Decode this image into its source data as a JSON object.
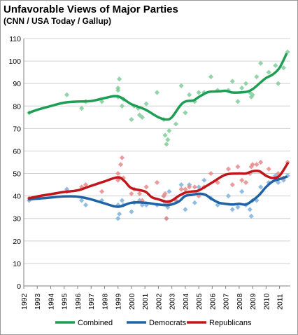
{
  "title": "Unfavorable Views of Major Parties",
  "subtitle": "(CNN / USA Today / Gallup)",
  "chart_data": {
    "type": "scatter",
    "title": "Unfavorable Views of Major Parties",
    "subtitle": "(CNN / USA Today / Gallup)",
    "xlim": [
      1992,
      2011.8
    ],
    "ylim": [
      0,
      110
    ],
    "yticks": [
      0,
      10,
      20,
      30,
      40,
      50,
      60,
      70,
      80,
      90,
      100,
      110
    ],
    "xticks": [
      1992,
      1993,
      1994,
      1995,
      1996,
      1997,
      1998,
      1999,
      2000,
      2001,
      2002,
      2003,
      2004,
      2005,
      2006,
      2007,
      2008,
      2009,
      2010,
      2011
    ],
    "xtick_labels": [
      "1992",
      "1993",
      "1994",
      "1995",
      "1996",
      "1997",
      "1998",
      "1999",
      "2000",
      "2001",
      "2002",
      "2003",
      "2004",
      "2005",
      "2006",
      "2007",
      "2008",
      "2009",
      "2010",
      "2011"
    ],
    "grid": "horizontal",
    "legend_position": "bottom",
    "series": [
      {
        "name": "Combined",
        "color": "#1e9e55",
        "point_color": "#80cc9a",
        "trend": [
          [
            1992.4,
            77
          ],
          [
            1993,
            78.3
          ],
          [
            1994,
            80
          ],
          [
            1995,
            81.5
          ],
          [
            1996,
            82
          ],
          [
            1997,
            82.2
          ],
          [
            1998,
            83.5
          ],
          [
            1999,
            84.3
          ],
          [
            2000,
            80.8
          ],
          [
            2001,
            78.5
          ],
          [
            2002,
            75
          ],
          [
            2002.6,
            74
          ],
          [
            2003,
            75
          ],
          [
            2003.6,
            80
          ],
          [
            2004,
            82
          ],
          [
            2004.6,
            82.5
          ],
          [
            2005,
            84
          ],
          [
            2005.7,
            86.2
          ],
          [
            2006.5,
            86.5
          ],
          [
            2007,
            86.8
          ],
          [
            2007.5,
            86
          ],
          [
            2008.5,
            86.3
          ],
          [
            2009,
            87.5
          ],
          [
            2009.5,
            90
          ],
          [
            2010,
            92.5
          ],
          [
            2010.5,
            94
          ],
          [
            2011,
            97
          ],
          [
            2011.5,
            103
          ]
        ],
        "points": [
          [
            1992.4,
            77
          ],
          [
            1995.2,
            85
          ],
          [
            1996.3,
            79
          ],
          [
            1996.6,
            82
          ],
          [
            1997.8,
            82
          ],
          [
            1999,
            84
          ],
          [
            1999,
            87
          ],
          [
            1999,
            88
          ],
          [
            1999.1,
            92
          ],
          [
            1999.3,
            80
          ],
          [
            1999.4,
            83
          ],
          [
            2000,
            74
          ],
          [
            2000.2,
            80
          ],
          [
            2000.5,
            79
          ],
          [
            2000.6,
            76
          ],
          [
            2000.8,
            75
          ],
          [
            2001.1,
            81
          ],
          [
            2001.9,
            86
          ],
          [
            2002.4,
            74
          ],
          [
            2002.5,
            67
          ],
          [
            2002.6,
            63
          ],
          [
            2002.7,
            65
          ],
          [
            2002.8,
            69
          ],
          [
            2003.3,
            72
          ],
          [
            2003.7,
            89
          ],
          [
            2004,
            77
          ],
          [
            2004.3,
            85
          ],
          [
            2004.7,
            82
          ],
          [
            2005,
            86
          ],
          [
            2005.4,
            86
          ],
          [
            2005.9,
            93
          ],
          [
            2006.4,
            87
          ],
          [
            2007.2,
            87
          ],
          [
            2007.5,
            91
          ],
          [
            2007.9,
            82
          ],
          [
            2008.2,
            88
          ],
          [
            2008.5,
            90
          ],
          [
            2008.8,
            86
          ],
          [
            2008.9,
            84
          ],
          [
            2009,
            85
          ],
          [
            2009.3,
            93
          ],
          [
            2009.6,
            99
          ],
          [
            2010.2,
            95
          ],
          [
            2010.7,
            98
          ],
          [
            2010.9,
            90
          ],
          [
            2011.3,
            97
          ],
          [
            2011.6,
            104
          ]
        ]
      },
      {
        "name": "Democrats",
        "color": "#1f63a6",
        "point_color": "#7fb1dd",
        "trend": [
          [
            1992.4,
            38.5
          ],
          [
            1993,
            38.8
          ],
          [
            1994,
            39.3
          ],
          [
            1995,
            39.8
          ],
          [
            1996,
            39.7
          ],
          [
            1997,
            38.5
          ],
          [
            1998,
            36.7
          ],
          [
            1999,
            35.2
          ],
          [
            2000,
            37
          ],
          [
            2001,
            37
          ],
          [
            2002,
            36.2
          ],
          [
            2002.8,
            36
          ],
          [
            2003.5,
            37.5
          ],
          [
            2004,
            40
          ],
          [
            2004.5,
            40.5
          ],
          [
            2005,
            41
          ],
          [
            2005.5,
            40.5
          ],
          [
            2006,
            38.5
          ],
          [
            2006.5,
            37
          ],
          [
            2007,
            36.5
          ],
          [
            2007.5,
            36.2
          ],
          [
            2008,
            36.5
          ],
          [
            2008.5,
            36.2
          ],
          [
            2009,
            38
          ],
          [
            2009.5,
            40.5
          ],
          [
            2010,
            44
          ],
          [
            2010.5,
            46.5
          ],
          [
            2011,
            47.5
          ],
          [
            2011.5,
            48.5
          ]
        ],
        "points": [
          [
            1992.4,
            38
          ],
          [
            1995.2,
            43
          ],
          [
            1996.3,
            38
          ],
          [
            1996.6,
            36
          ],
          [
            1997.8,
            38
          ],
          [
            1999,
            36
          ],
          [
            1999,
            30
          ],
          [
            1999.1,
            32
          ],
          [
            1999.3,
            38
          ],
          [
            1999.4,
            36
          ],
          [
            2000,
            33
          ],
          [
            2000.2,
            37
          ],
          [
            2000.6,
            38
          ],
          [
            2000.8,
            36
          ],
          [
            2001.1,
            36
          ],
          [
            2001.9,
            36
          ],
          [
            2002.4,
            40
          ],
          [
            2002.5,
            37
          ],
          [
            2002.6,
            30
          ],
          [
            2002.7,
            35
          ],
          [
            2002.8,
            42
          ],
          [
            2003.3,
            38
          ],
          [
            2003.7,
            45
          ],
          [
            2004,
            34
          ],
          [
            2004.3,
            45
          ],
          [
            2004.7,
            37
          ],
          [
            2005,
            44
          ],
          [
            2005.4,
            47
          ],
          [
            2005.9,
            39
          ],
          [
            2006.4,
            36
          ],
          [
            2007.2,
            40
          ],
          [
            2007.5,
            34
          ],
          [
            2007.9,
            35
          ],
          [
            2008.2,
            42
          ],
          [
            2008.5,
            36
          ],
          [
            2008.8,
            34
          ],
          [
            2008.9,
            31
          ],
          [
            2009,
            38
          ],
          [
            2009.3,
            38
          ],
          [
            2009.6,
            44
          ],
          [
            2010.2,
            46
          ],
          [
            2010.7,
            49
          ],
          [
            2010.9,
            46
          ],
          [
            2011.3,
            47
          ],
          [
            2011.6,
            49
          ]
        ]
      },
      {
        "name": "Republicans",
        "color": "#c0151b",
        "point_color": "#e88a8a",
        "trend": [
          [
            1992.4,
            39
          ],
          [
            1993,
            39.8
          ],
          [
            1994,
            40.8
          ],
          [
            1995,
            41.8
          ],
          [
            1996,
            42.5
          ],
          [
            1997,
            44.5
          ],
          [
            1998,
            46.5
          ],
          [
            1999,
            48.3
          ],
          [
            1999.5,
            46.5
          ],
          [
            2000,
            43.5
          ],
          [
            2001,
            42
          ],
          [
            2001.5,
            39.5
          ],
          [
            2002,
            38.5
          ],
          [
            2002.6,
            37.5
          ],
          [
            2003,
            38
          ],
          [
            2003.5,
            40
          ],
          [
            2004,
            41.5
          ],
          [
            2004.5,
            42
          ],
          [
            2005,
            42.5
          ],
          [
            2006,
            46
          ],
          [
            2007,
            49.5
          ],
          [
            2008,
            50
          ],
          [
            2008.5,
            50
          ],
          [
            2009,
            51
          ],
          [
            2009.5,
            51
          ],
          [
            2010,
            49
          ],
          [
            2010.5,
            48
          ],
          [
            2011,
            49
          ],
          [
            2011.6,
            54.5
          ]
        ],
        "points": [
          [
            1992.4,
            39
          ],
          [
            1995.2,
            42
          ],
          [
            1996.3,
            44
          ],
          [
            1996.6,
            45
          ],
          [
            1997.8,
            42
          ],
          [
            1999,
            47
          ],
          [
            1999,
            50
          ],
          [
            1999.1,
            48
          ],
          [
            1999.2,
            54
          ],
          [
            1999.3,
            57
          ],
          [
            1999.4,
            48
          ],
          [
            2000,
            41
          ],
          [
            2000.2,
            43
          ],
          [
            2000.6,
            41
          ],
          [
            2000.8,
            38
          ],
          [
            2001.1,
            44
          ],
          [
            2001.9,
            46
          ],
          [
            2002.4,
            40
          ],
          [
            2002.5,
            41
          ],
          [
            2002.6,
            30
          ],
          [
            2002.7,
            36
          ],
          [
            2002.8,
            37
          ],
          [
            2003.3,
            38
          ],
          [
            2003.7,
            43
          ],
          [
            2004,
            43
          ],
          [
            2004.3,
            44
          ],
          [
            2004.7,
            44
          ],
          [
            2005,
            40
          ],
          [
            2005.4,
            44
          ],
          [
            2005.9,
            50
          ],
          [
            2006.4,
            46
          ],
          [
            2007.2,
            52
          ],
          [
            2007.5,
            45
          ],
          [
            2007.9,
            53
          ],
          [
            2008.2,
            47
          ],
          [
            2008.5,
            46
          ],
          [
            2008.8,
            50
          ],
          [
            2008.9,
            53
          ],
          [
            2009,
            54
          ],
          [
            2009.3,
            54
          ],
          [
            2009.6,
            55
          ],
          [
            2010.2,
            52
          ],
          [
            2010.7,
            48
          ],
          [
            2010.9,
            50
          ],
          [
            2011.3,
            48
          ],
          [
            2011.6,
            55
          ]
        ]
      }
    ]
  }
}
